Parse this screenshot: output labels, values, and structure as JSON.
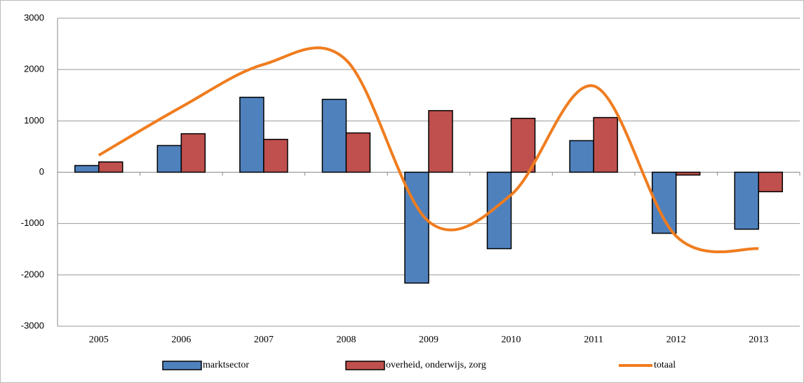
{
  "chart_data": {
    "type": "bar",
    "categories": [
      "2005",
      "2006",
      "2007",
      "2008",
      "2009",
      "2010",
      "2011",
      "2012",
      "2013"
    ],
    "series": [
      {
        "name": "marktsector",
        "color": "#4f81bd",
        "values": [
          130,
          520,
          1460,
          1420,
          -2160,
          -1490,
          615,
          -1190,
          -1110
        ]
      },
      {
        "name": "overheid, onderwijs, zorg",
        "color": "#c0504d",
        "values": [
          200,
          750,
          640,
          765,
          1200,
          1050,
          1065,
          -55,
          -380
        ]
      },
      {
        "name": "totaal",
        "color": "#f07c1e",
        "type": "line",
        "values": [
          330,
          1270,
          2100,
          2185,
          -960,
          -440,
          1680,
          -1245,
          -1490
        ]
      }
    ],
    "ylim": [
      -3000,
      3000
    ],
    "yticks": [
      -3000,
      -2000,
      -1000,
      0,
      1000,
      2000,
      3000
    ],
    "grid": true,
    "legend": "bottom"
  }
}
